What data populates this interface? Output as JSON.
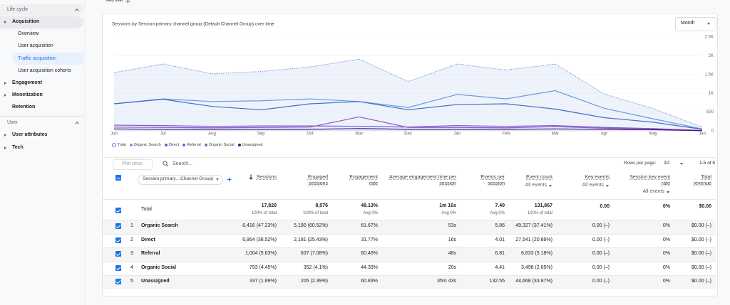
{
  "top_bar": {
    "add_filter": "Add filter"
  },
  "sidebar": {
    "life_cycle": {
      "title": "Life cycle",
      "acquisition": {
        "label": "Acquisition",
        "items": [
          "Overview",
          "User acquisition",
          "Traffic acquisition",
          "User acquisition cohorts"
        ]
      },
      "items": [
        "Engagement",
        "Monetization",
        "Retention"
      ]
    },
    "user": {
      "title": "User",
      "items": [
        "User attributes",
        "Tech"
      ]
    }
  },
  "controls": {
    "granularity": "Month"
  },
  "chart_data": {
    "type": "line",
    "title": "Sessions by Session primary channel group (Default Channel Group) over time",
    "categories": [
      "Jun",
      "Jul",
      "Aug",
      "Sep",
      "Oct",
      "Nov",
      "Dec",
      "Jan",
      "Feb",
      "Mar",
      "Apr",
      "May",
      "Jun"
    ],
    "series": [
      {
        "name": "Total",
        "color": "#5b7bd5",
        "line_style": "dotted",
        "area": true,
        "values": [
          1550,
          1780,
          1520,
          1580,
          1700,
          1910,
          1310,
          1780,
          1620,
          1780,
          980,
          590,
          100
        ]
      },
      {
        "name": "Organic Search",
        "color": "#6a9be0",
        "values": [
          720,
          850,
          780,
          800,
          850,
          780,
          620,
          970,
          850,
          1070,
          600,
          320,
          50
        ]
      },
      {
        "name": "Direct",
        "color": "#3f6fc8",
        "values": [
          720,
          840,
          650,
          560,
          720,
          780,
          560,
          700,
          720,
          580,
          350,
          230,
          40
        ]
      },
      {
        "name": "Referral",
        "color": "#6c5ce7",
        "values": [
          150,
          140,
          120,
          130,
          130,
          120,
          100,
          140,
          120,
          140,
          90,
          60,
          10
        ]
      },
      {
        "name": "Organic Social",
        "color": "#9b59b6",
        "values": [
          100,
          90,
          80,
          90,
          100,
          370,
          90,
          90,
          80,
          110,
          70,
          50,
          10
        ]
      },
      {
        "name": "Unassigned",
        "color": "#4b0f8a",
        "values": [
          50,
          40,
          40,
          40,
          40,
          60,
          40,
          40,
          40,
          50,
          40,
          30,
          5
        ]
      }
    ],
    "ylim": [
      0,
      2500
    ],
    "yticks": [
      0,
      500,
      {
        "value": 1000,
        "label": "1K"
      },
      {
        "value": 1500,
        "label": "1.5K"
      },
      {
        "value": 2000,
        "label": "2K"
      },
      {
        "value": 2500,
        "label": "2.5K"
      }
    ],
    "grid": true
  },
  "table": {
    "toolbar": {
      "plot_rows": "Plot rows",
      "search_placeholder": "Search...",
      "rows_per_page_label": "Rows per page:",
      "rows_per_page": "10",
      "pagination": "1-5 of 5"
    },
    "dimension": "Session primary…Channel Group)",
    "columns": [
      {
        "label": "Sessions"
      },
      {
        "label": "Engaged sessions"
      },
      {
        "label": "Engagement rate"
      },
      {
        "label": "Average engagement time per session"
      },
      {
        "label": "Events per session"
      },
      {
        "label": "Event count",
        "filter": "All events"
      },
      {
        "label": "Key events",
        "filter": "All events"
      },
      {
        "label": "Session key event rate",
        "filter": "All events"
      },
      {
        "label": "Total revenue"
      }
    ],
    "total": {
      "label": "Total",
      "cells": [
        {
          "value": "17,820",
          "sub": "100% of total"
        },
        {
          "value": "8,576",
          "sub": "100% of total"
        },
        {
          "value": "48.13%",
          "sub": "Avg 0%"
        },
        {
          "value": "1m 16s",
          "sub": "Avg 0%"
        },
        {
          "value": "7.40",
          "sub": "Avg 0%"
        },
        {
          "value": "131,867",
          "sub": "100% of total"
        },
        {
          "value": "0.00"
        },
        {
          "value": "0%"
        },
        {
          "value": "$0.00"
        }
      ]
    },
    "rows": [
      {
        "index": "1",
        "name": "Organic Search",
        "cells": [
          "8,416 (47.23%)",
          "5,190 (60.52%)",
          "61.67%",
          "53s",
          "5.86",
          "49,327 (37.41%)",
          "0.00 (–)",
          "0%",
          "$0.00 (–)"
        ]
      },
      {
        "index": "2",
        "name": "Direct",
        "cells": [
          "6,864 (38.52%)",
          "2,181 (25.43%)",
          "31.77%",
          "16s",
          "4.01",
          "27,541 (20.89%)",
          "0.00 (–)",
          "0%",
          "$0.00 (–)"
        ]
      },
      {
        "index": "3",
        "name": "Referral",
        "cells": [
          "1,004 (5.63%)",
          "607 (7.08%)",
          "60.46%",
          "48s",
          "6.81",
          "6,833 (5.18%)",
          "0.00 (–)",
          "0%",
          "$0.00 (–)"
        ]
      },
      {
        "index": "4",
        "name": "Organic Social",
        "cells": [
          "793 (4.45%)",
          "352 (4.1%)",
          "44.39%",
          "20s",
          "4.41",
          "3,498 (2.65%)",
          "0.00 (–)",
          "0%",
          "$0.00 (–)"
        ]
      },
      {
        "index": "5",
        "name": "Unassigned",
        "cells": [
          "337 (1.89%)",
          "205 (2.39%)",
          "60.83%",
          "35m 43s",
          "132.55",
          "44,668 (33.87%)",
          "0.00 (–)",
          "0%",
          "$0.00 (–)"
        ]
      }
    ]
  }
}
